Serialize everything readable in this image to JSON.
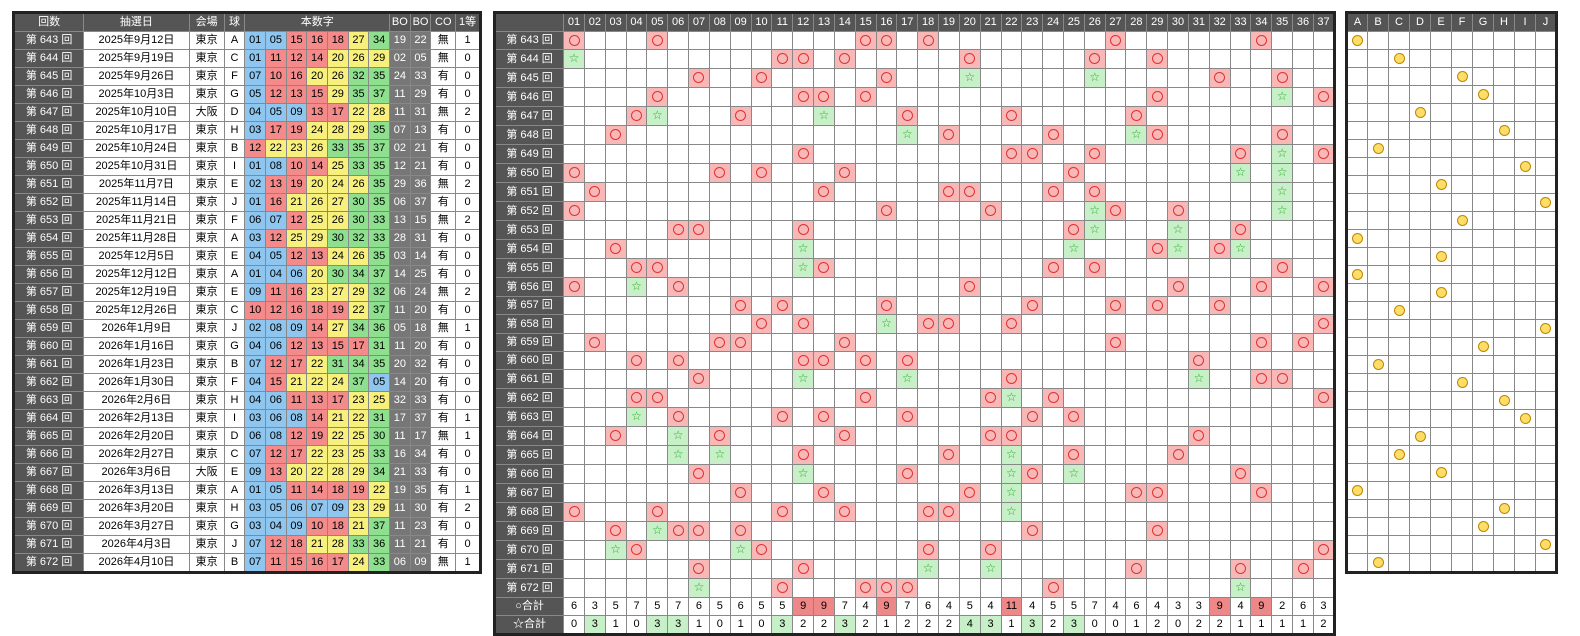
{
  "colors": {
    "blue": "#8ec6f0",
    "red": "#f48a8a",
    "yellow": "#f8f07c",
    "green": "#8ee08e",
    "pink": "#f8b8b8",
    "lightgreen": "#c8f0c8",
    "hitred": "#e88"
  },
  "left": {
    "headers": [
      "回数",
      "抽選日",
      "会場",
      "球",
      "本数字",
      "BO",
      "BO",
      "CO",
      "1等"
    ],
    "rows": [
      {
        "no": "第 643 回",
        "date": "2025年9月12日",
        "venue": "東京",
        "ball": "A",
        "nums": [
          "01",
          "05",
          "15",
          "16",
          "18",
          "27",
          "34"
        ],
        "b1": "19",
        "b2": "22",
        "co": "無",
        "first": "1"
      },
      {
        "no": "第 644 回",
        "date": "2025年9月19日",
        "venue": "東京",
        "ball": "C",
        "nums": [
          "01",
          "11",
          "12",
          "14",
          "20",
          "26",
          "29"
        ],
        "b1": "02",
        "b2": "05",
        "co": "無",
        "first": "0"
      },
      {
        "no": "第 645 回",
        "date": "2025年9月26日",
        "venue": "東京",
        "ball": "F",
        "nums": [
          "07",
          "10",
          "16",
          "20",
          "26",
          "32",
          "35"
        ],
        "b1": "24",
        "b2": "33",
        "co": "有",
        "first": "0"
      },
      {
        "no": "第 646 回",
        "date": "2025年10月3日",
        "venue": "東京",
        "ball": "G",
        "nums": [
          "05",
          "12",
          "13",
          "15",
          "29",
          "35",
          "37"
        ],
        "b1": "11",
        "b2": "29",
        "co": "有",
        "first": "0"
      },
      {
        "no": "第 647 回",
        "date": "2025年10月10日",
        "venue": "大阪",
        "ball": "D",
        "nums": [
          "04",
          "05",
          "09",
          "13",
          "17",
          "22",
          "28"
        ],
        "b1": "11",
        "b2": "31",
        "co": "無",
        "first": "2"
      },
      {
        "no": "第 648 回",
        "date": "2025年10月17日",
        "venue": "東京",
        "ball": "H",
        "nums": [
          "03",
          "17",
          "19",
          "24",
          "28",
          "29",
          "35"
        ],
        "b1": "07",
        "b2": "13",
        "co": "有",
        "first": "0"
      },
      {
        "no": "第 649 回",
        "date": "2025年10月24日",
        "venue": "東京",
        "ball": "B",
        "nums": [
          "12",
          "22",
          "23",
          "26",
          "33",
          "35",
          "37"
        ],
        "b1": "02",
        "b2": "21",
        "co": "有",
        "first": "0"
      },
      {
        "no": "第 650 回",
        "date": "2025年10月31日",
        "venue": "東京",
        "ball": "I",
        "nums": [
          "01",
          "08",
          "10",
          "14",
          "25",
          "33",
          "35"
        ],
        "b1": "12",
        "b2": "21",
        "co": "有",
        "first": "0"
      },
      {
        "no": "第 651 回",
        "date": "2025年11月7日",
        "venue": "東京",
        "ball": "E",
        "nums": [
          "02",
          "13",
          "19",
          "20",
          "24",
          "26",
          "35"
        ],
        "b1": "29",
        "b2": "36",
        "co": "無",
        "first": "2"
      },
      {
        "no": "第 652 回",
        "date": "2025年11月14日",
        "venue": "東京",
        "ball": "J",
        "nums": [
          "01",
          "16",
          "21",
          "26",
          "27",
          "30",
          "35"
        ],
        "b1": "06",
        "b2": "37",
        "co": "有",
        "first": "0"
      },
      {
        "no": "第 653 回",
        "date": "2025年11月21日",
        "venue": "東京",
        "ball": "F",
        "nums": [
          "06",
          "07",
          "12",
          "25",
          "26",
          "30",
          "33"
        ],
        "b1": "13",
        "b2": "15",
        "co": "無",
        "first": "2"
      },
      {
        "no": "第 654 回",
        "date": "2025年11月28日",
        "venue": "東京",
        "ball": "A",
        "nums": [
          "03",
          "12",
          "25",
          "29",
          "30",
          "32",
          "33"
        ],
        "b1": "28",
        "b2": "31",
        "co": "有",
        "first": "0"
      },
      {
        "no": "第 655 回",
        "date": "2025年12月5日",
        "venue": "東京",
        "ball": "E",
        "nums": [
          "04",
          "05",
          "12",
          "13",
          "24",
          "26",
          "35"
        ],
        "b1": "03",
        "b2": "14",
        "co": "有",
        "first": "0"
      },
      {
        "no": "第 656 回",
        "date": "2025年12月12日",
        "venue": "東京",
        "ball": "A",
        "nums": [
          "01",
          "04",
          "06",
          "20",
          "30",
          "34",
          "37"
        ],
        "b1": "14",
        "b2": "25",
        "co": "有",
        "first": "0"
      },
      {
        "no": "第 657 回",
        "date": "2025年12月19日",
        "venue": "東京",
        "ball": "E",
        "nums": [
          "09",
          "11",
          "16",
          "23",
          "27",
          "29",
          "32"
        ],
        "b1": "06",
        "b2": "24",
        "co": "無",
        "first": "2"
      },
      {
        "no": "第 658 回",
        "date": "2025年12月26日",
        "venue": "東京",
        "ball": "C",
        "nums": [
          "10",
          "12",
          "16",
          "18",
          "19",
          "22",
          "37"
        ],
        "b1": "11",
        "b2": "20",
        "co": "有",
        "first": "0"
      },
      {
        "no": "第 659 回",
        "date": "2026年1月9日",
        "venue": "東京",
        "ball": "J",
        "nums": [
          "02",
          "08",
          "09",
          "14",
          "27",
          "34",
          "36"
        ],
        "b1": "05",
        "b2": "18",
        "co": "無",
        "first": "1"
      },
      {
        "no": "第 660 回",
        "date": "2026年1月16日",
        "venue": "東京",
        "ball": "G",
        "nums": [
          "04",
          "06",
          "12",
          "13",
          "15",
          "17",
          "31"
        ],
        "b1": "11",
        "b2": "20",
        "co": "有",
        "first": "0"
      },
      {
        "no": "第 661 回",
        "date": "2026年1月23日",
        "venue": "東京",
        "ball": "B",
        "nums": [
          "07",
          "12",
          "17",
          "22",
          "31",
          "34",
          "35"
        ],
        "b1": "20",
        "b2": "32",
        "co": "有",
        "first": "0"
      },
      {
        "no": "第 662 回",
        "date": "2026年1月30日",
        "venue": "東京",
        "ball": "F",
        "nums": [
          "04",
          "15",
          "21",
          "22",
          "24",
          "37",
          "05"
        ],
        "b1": "14",
        "b2": "20",
        "co": "有",
        "first": "0"
      },
      {
        "no": "第 663 回",
        "date": "2026年2月6日",
        "venue": "東京",
        "ball": "H",
        "nums": [
          "04",
          "06",
          "11",
          "13",
          "17",
          "23",
          "25"
        ],
        "b1": "32",
        "b2": "33",
        "co": "有",
        "first": "0"
      },
      {
        "no": "第 664 回",
        "date": "2026年2月13日",
        "venue": "東京",
        "ball": "I",
        "nums": [
          "03",
          "06",
          "08",
          "14",
          "21",
          "22",
          "31"
        ],
        "b1": "17",
        "b2": "37",
        "co": "有",
        "first": "1"
      },
      {
        "no": "第 665 回",
        "date": "2026年2月20日",
        "venue": "東京",
        "ball": "D",
        "nums": [
          "06",
          "08",
          "12",
          "19",
          "22",
          "25",
          "30"
        ],
        "b1": "11",
        "b2": "17",
        "co": "無",
        "first": "1"
      },
      {
        "no": "第 666 回",
        "date": "2026年2月27日",
        "venue": "東京",
        "ball": "C",
        "nums": [
          "07",
          "12",
          "17",
          "22",
          "23",
          "25",
          "33"
        ],
        "b1": "16",
        "b2": "34",
        "co": "有",
        "first": "0"
      },
      {
        "no": "第 667 回",
        "date": "2026年3月6日",
        "venue": "大阪",
        "ball": "E",
        "nums": [
          "09",
          "13",
          "20",
          "22",
          "28",
          "29",
          "34"
        ],
        "b1": "21",
        "b2": "33",
        "co": "有",
        "first": "0"
      },
      {
        "no": "第 668 回",
        "date": "2026年3月13日",
        "venue": "東京",
        "ball": "A",
        "nums": [
          "01",
          "05",
          "11",
          "14",
          "18",
          "19",
          "22"
        ],
        "b1": "19",
        "b2": "35",
        "co": "有",
        "first": "1"
      },
      {
        "no": "第 669 回",
        "date": "2026年3月20日",
        "venue": "東京",
        "ball": "H",
        "nums": [
          "03",
          "05",
          "06",
          "07",
          "09",
          "23",
          "29"
        ],
        "b1": "11",
        "b2": "30",
        "co": "有",
        "first": "2"
      },
      {
        "no": "第 670 回",
        "date": "2026年3月27日",
        "venue": "東京",
        "ball": "G",
        "nums": [
          "03",
          "04",
          "09",
          "10",
          "18",
          "21",
          "37"
        ],
        "b1": "11",
        "b2": "23",
        "co": "有",
        "first": "0"
      },
      {
        "no": "第 671 回",
        "date": "2026年4月3日",
        "venue": "東京",
        "ball": "J",
        "nums": [
          "07",
          "12",
          "18",
          "21",
          "28",
          "33",
          "36"
        ],
        "b1": "11",
        "b2": "21",
        "co": "有",
        "first": "0"
      },
      {
        "no": "第 672 回",
        "date": "2026年4月10日",
        "venue": "東京",
        "ball": "B",
        "nums": [
          "07",
          "11",
          "15",
          "16",
          "17",
          "24",
          "33"
        ],
        "b1": "06",
        "b2": "09",
        "co": "無",
        "first": "1"
      }
    ]
  },
  "grid": {
    "columns": [
      "01",
      "02",
      "03",
      "04",
      "05",
      "06",
      "07",
      "08",
      "09",
      "10",
      "11",
      "12",
      "13",
      "14",
      "15",
      "16",
      "17",
      "18",
      "19",
      "20",
      "21",
      "22",
      "23",
      "24",
      "25",
      "26",
      "27",
      "28",
      "29",
      "30",
      "31",
      "32",
      "33",
      "34",
      "35",
      "36",
      "37"
    ],
    "circle_total_label": "○合計",
    "star_total_label": "☆合計",
    "circle_totals": [
      "6",
      "3",
      "5",
      "7",
      "5",
      "7",
      "6",
      "5",
      "6",
      "5",
      "5",
      "9",
      "9",
      "7",
      "4",
      "9",
      "7",
      "6",
      "4",
      "5",
      "4",
      "11",
      "4",
      "5",
      "5",
      "7",
      "4",
      "6",
      "4",
      "3",
      "3",
      "9",
      "4",
      "9",
      "2",
      "6",
      "3"
    ],
    "star_totals": [
      "0",
      "3",
      "1",
      "0",
      "3",
      "3",
      "1",
      "0",
      "1",
      "0",
      "3",
      "2",
      "2",
      "3",
      "2",
      "1",
      "2",
      "2",
      "2",
      "4",
      "3",
      "1",
      "3",
      "2",
      "3",
      "0",
      "0",
      "1",
      "2",
      "0",
      "2",
      "2",
      "1",
      "1",
      "1",
      "1",
      "2"
    ]
  },
  "balls": {
    "columns": [
      "A",
      "B",
      "C",
      "D",
      "E",
      "F",
      "G",
      "H",
      "I",
      "J"
    ]
  }
}
